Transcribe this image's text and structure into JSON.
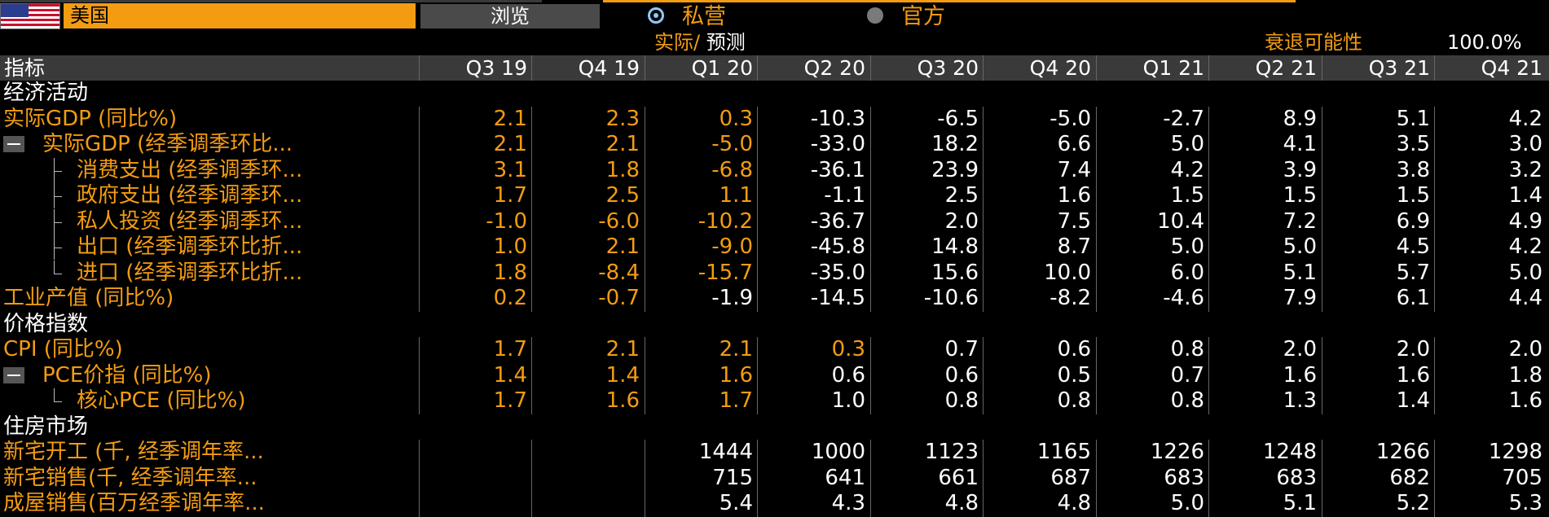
{
  "header": {
    "country": "美国",
    "browse_label": "浏览",
    "radio_private": "私营",
    "radio_official": "官方",
    "actual_label": "实际",
    "slash": "/",
    "forecast_label": "预测",
    "recession_label": "衰退可能性",
    "recession_value": "100.0%"
  },
  "table": {
    "indicator_header": "指标",
    "columns": [
      "Q3 19",
      "Q4 19",
      "Q1 20",
      "Q2 20",
      "Q3 20",
      "Q4 20",
      "Q1 21",
      "Q2 21",
      "Q3 21",
      "Q4 21"
    ],
    "actual_color": "#f39c12",
    "forecast_color": "#ffffff",
    "rows": [
      {
        "label": "经济活动",
        "kind": "section",
        "values": []
      },
      {
        "label": "实际GDP (同比%)",
        "kind": "top",
        "values": [
          "2.1",
          "2.3",
          "0.3",
          "-10.3",
          "-6.5",
          "-5.0",
          "-2.7",
          "8.9",
          "5.1",
          "4.2"
        ],
        "actual_count": 3
      },
      {
        "label": "实际GDP (经季调季环比...",
        "kind": "expand",
        "values": [
          "2.1",
          "2.1",
          "-5.0",
          "-33.0",
          "18.2",
          "6.6",
          "5.0",
          "4.1",
          "3.5",
          "3.0"
        ],
        "actual_count": 3
      },
      {
        "label": "消费支出 (经季调季环...",
        "kind": "child",
        "values": [
          "3.1",
          "1.8",
          "-6.8",
          "-36.1",
          "23.9",
          "7.4",
          "4.2",
          "3.9",
          "3.8",
          "3.2"
        ],
        "actual_count": 3
      },
      {
        "label": "政府支出 (经季调季环...",
        "kind": "child",
        "values": [
          "1.7",
          "2.5",
          "1.1",
          "-1.1",
          "2.5",
          "1.6",
          "1.5",
          "1.5",
          "1.5",
          "1.4"
        ],
        "actual_count": 3
      },
      {
        "label": "私人投资 (经季调季环...",
        "kind": "child",
        "values": [
          "-1.0",
          "-6.0",
          "-10.2",
          "-36.7",
          "2.0",
          "7.5",
          "10.4",
          "7.2",
          "6.9",
          "4.9"
        ],
        "actual_count": 3
      },
      {
        "label": "出口 (经季调季环比折...",
        "kind": "child",
        "values": [
          "1.0",
          "2.1",
          "-9.0",
          "-45.8",
          "14.8",
          "8.7",
          "5.0",
          "5.0",
          "4.5",
          "4.2"
        ],
        "actual_count": 3
      },
      {
        "label": "进口 (经季调季环比折...",
        "kind": "child-last",
        "values": [
          "1.8",
          "-8.4",
          "-15.7",
          "-35.0",
          "15.6",
          "10.0",
          "6.0",
          "5.1",
          "5.7",
          "5.0"
        ],
        "actual_count": 3
      },
      {
        "label": "工业产值 (同比%)",
        "kind": "top",
        "values": [
          "0.2",
          "-0.7",
          "-1.9",
          "-14.5",
          "-10.6",
          "-8.2",
          "-4.6",
          "7.9",
          "6.1",
          "4.4"
        ],
        "actual_count": 2
      },
      {
        "label": "价格指数",
        "kind": "section",
        "values": []
      },
      {
        "label": "CPI (同比%)",
        "kind": "top",
        "values": [
          "1.7",
          "2.1",
          "2.1",
          "0.3",
          "0.7",
          "0.6",
          "0.8",
          "2.0",
          "2.0",
          "2.0"
        ],
        "actual_count": 4
      },
      {
        "label": "PCE价指 (同比%)",
        "kind": "expand",
        "values": [
          "1.4",
          "1.4",
          "1.6",
          "0.6",
          "0.6",
          "0.5",
          "0.7",
          "1.6",
          "1.6",
          "1.8"
        ],
        "actual_count": 3
      },
      {
        "label": "核心PCE (同比%)",
        "kind": "child-last",
        "values": [
          "1.7",
          "1.6",
          "1.7",
          "1.0",
          "0.8",
          "0.8",
          "0.8",
          "1.3",
          "1.4",
          "1.6"
        ],
        "actual_count": 3
      },
      {
        "label": "住房市场",
        "kind": "section",
        "values": []
      },
      {
        "label": "新宅开工 (千, 经季调年率...",
        "kind": "top",
        "values": [
          "",
          "",
          "1444",
          "1000",
          "1123",
          "1165",
          "1226",
          "1248",
          "1266",
          "1298"
        ],
        "actual_count": 0
      },
      {
        "label": "新宅销售(千, 经季调年率...",
        "kind": "top",
        "values": [
          "",
          "",
          "715",
          "641",
          "661",
          "687",
          "683",
          "683",
          "682",
          "705"
        ],
        "actual_count": 0
      },
      {
        "label": "成屋销售(百万经季调年率...",
        "kind": "top",
        "values": [
          "",
          "",
          "5.4",
          "4.3",
          "4.8",
          "4.8",
          "5.0",
          "5.1",
          "5.2",
          "5.3"
        ],
        "actual_count": 0
      }
    ]
  }
}
